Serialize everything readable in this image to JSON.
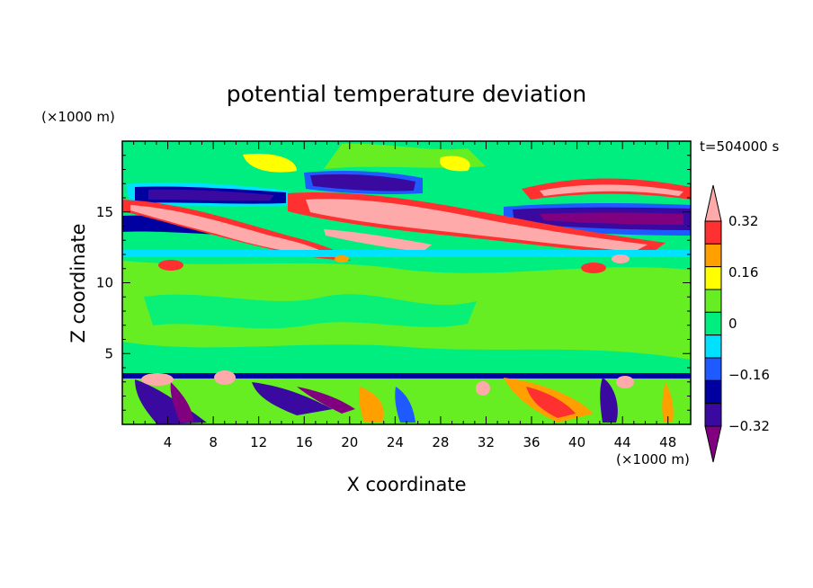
{
  "chart_data": {
    "type": "heatmap",
    "title": "potential temperature deviation",
    "xlabel": "X coordinate",
    "ylabel": "Z coordinate",
    "x_units": "(×1000 m)",
    "y_units": "(×1000 m)",
    "time_label": "t=504000 s",
    "xlim": [
      0,
      50
    ],
    "ylim": [
      0,
      20
    ],
    "x_ticks": [
      4,
      8,
      12,
      16,
      20,
      24,
      28,
      32,
      36,
      40,
      44,
      48
    ],
    "x_tick_labels": [
      "4",
      "8",
      "12",
      "16",
      "20",
      "24",
      "28",
      "32",
      "36",
      "40",
      "44",
      "48"
    ],
    "y_ticks": [
      5,
      10,
      15
    ],
    "y_tick_labels": [
      "5",
      "10",
      "15"
    ],
    "colorbar": {
      "levels": [
        -0.4,
        -0.32,
        -0.24,
        -0.16,
        -0.08,
        0,
        0.08,
        0.16,
        0.24,
        0.32,
        0.4
      ],
      "tick_values": [
        0.32,
        0.16,
        0,
        -0.16,
        -0.32
      ],
      "tick_labels": [
        "0.32",
        "0.16",
        "0",
        "−0.16",
        "−0.32"
      ],
      "colors": [
        "#800080",
        "#3a0aa0",
        "#0000a0",
        "#1e5aff",
        "#00e0ff",
        "#00ee80",
        "#66ee22",
        "#ffff00",
        "#ffa000",
        "#ff3030",
        "#ffaaaa"
      ]
    },
    "features": [
      {
        "region": "upper",
        "z_range": [
          12,
          18
        ],
        "values": "strong positive and negative layers"
      },
      {
        "region": "low_level",
        "z_range": [
          0,
          4
        ],
        "values": "mixed positive and negative cells"
      }
    ]
  }
}
